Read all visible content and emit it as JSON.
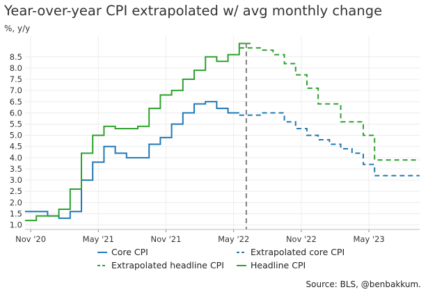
{
  "chart_data": {
    "type": "line",
    "title": "Year-over-year CPI extrapolated w/ avg monthly change",
    "subtitle": "%, y/y",
    "source": "Source: BLS, @benbakkum.",
    "x_tick_labels": [
      "Nov '20",
      "May '21",
      "Nov '21",
      "May '22",
      "Nov '22",
      "May '23"
    ],
    "y_tick_labels": [
      "1.0",
      "1.5",
      "2.0",
      "2.5",
      "3.0",
      "3.5",
      "4.0",
      "4.5",
      "5.0",
      "5.5",
      "6.0",
      "6.5",
      "7.0",
      "7.5",
      "8.0",
      "8.5"
    ],
    "ylim": [
      0.8,
      9.3
    ],
    "grid": true,
    "divider_date": "2022-06",
    "legend_position": "bottom",
    "series": [
      {
        "name": "Core CPI",
        "color": "#1f77b4",
        "dashed": false,
        "points": [
          [
            "2020-11",
            1.6
          ],
          [
            "2020-12",
            1.6
          ],
          [
            "2021-01",
            1.4
          ],
          [
            "2021-02",
            1.3
          ],
          [
            "2021-03",
            1.6
          ],
          [
            "2021-04",
            3.0
          ],
          [
            "2021-05",
            3.8
          ],
          [
            "2021-06",
            4.5
          ],
          [
            "2021-07",
            4.2
          ],
          [
            "2021-08",
            4.0
          ],
          [
            "2021-09",
            4.0
          ],
          [
            "2021-10",
            4.6
          ],
          [
            "2021-11",
            4.9
          ],
          [
            "2021-12",
            5.5
          ],
          [
            "2022-01",
            6.0
          ],
          [
            "2022-02",
            6.4
          ],
          [
            "2022-03",
            6.5
          ],
          [
            "2022-04",
            6.2
          ],
          [
            "2022-05",
            6.0
          ]
        ]
      },
      {
        "name": "Extrapolated core CPI",
        "color": "#1f77b4",
        "dashed": true,
        "points": [
          [
            "2022-06",
            5.9
          ],
          [
            "2022-07",
            5.9
          ],
          [
            "2022-08",
            6.0
          ],
          [
            "2022-09",
            6.0
          ],
          [
            "2022-10",
            5.6
          ],
          [
            "2022-11",
            5.3
          ],
          [
            "2022-12",
            5.0
          ],
          [
            "2023-01",
            4.8
          ],
          [
            "2023-02",
            4.6
          ],
          [
            "2023-03",
            4.4
          ],
          [
            "2023-04",
            4.2
          ],
          [
            "2023-05",
            3.7
          ],
          [
            "2023-06",
            3.2
          ],
          [
            "2023-07",
            3.2
          ],
          [
            "2023-08",
            3.2
          ],
          [
            "2023-09",
            3.2
          ]
        ]
      },
      {
        "name": "Extrapolated headline CPI",
        "color": "#2ca02c",
        "dashed": true,
        "points": [
          [
            "2022-06",
            8.9
          ],
          [
            "2022-07",
            8.9
          ],
          [
            "2022-08",
            8.8
          ],
          [
            "2022-09",
            8.6
          ],
          [
            "2022-10",
            8.2
          ],
          [
            "2022-11",
            7.7
          ],
          [
            "2022-12",
            7.1
          ],
          [
            "2023-01",
            6.4
          ],
          [
            "2023-02",
            6.4
          ],
          [
            "2023-03",
            5.6
          ],
          [
            "2023-04",
            5.6
          ],
          [
            "2023-05",
            5.0
          ],
          [
            "2023-06",
            3.9
          ],
          [
            "2023-07",
            3.9
          ],
          [
            "2023-08",
            3.9
          ],
          [
            "2023-09",
            3.9
          ]
        ]
      },
      {
        "name": "Headline CPI",
        "color": "#2ca02c",
        "dashed": false,
        "points": [
          [
            "2020-11",
            1.2
          ],
          [
            "2020-12",
            1.4
          ],
          [
            "2021-01",
            1.4
          ],
          [
            "2021-02",
            1.7
          ],
          [
            "2021-03",
            2.6
          ],
          [
            "2021-04",
            4.2
          ],
          [
            "2021-05",
            5.0
          ],
          [
            "2021-06",
            5.4
          ],
          [
            "2021-07",
            5.3
          ],
          [
            "2021-08",
            5.3
          ],
          [
            "2021-09",
            5.4
          ],
          [
            "2021-10",
            6.2
          ],
          [
            "2021-11",
            6.8
          ],
          [
            "2021-12",
            7.0
          ],
          [
            "2022-01",
            7.5
          ],
          [
            "2022-02",
            7.9
          ],
          [
            "2022-03",
            8.5
          ],
          [
            "2022-04",
            8.3
          ],
          [
            "2022-05",
            8.6
          ],
          [
            "2022-06",
            9.1
          ]
        ]
      }
    ]
  }
}
